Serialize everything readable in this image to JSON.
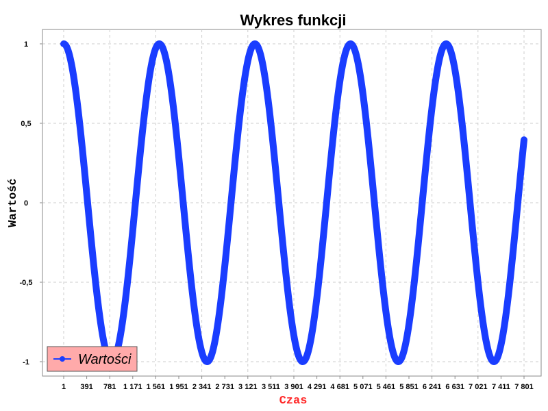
{
  "chart_data": {
    "type": "line",
    "title": "Wykres funkcji",
    "xlabel": "Czas",
    "ylabel": "Wartość",
    "xlabel_color": "#ff2a2a",
    "series_color": "#1a3dff",
    "legend_bg": "#ffaaaa",
    "legend_position": "bottom-left",
    "grid": true,
    "xlim": [
      1,
      9000
    ],
    "ylim": [
      -1.1,
      1.1
    ],
    "x_ticks": [
      "1",
      "391",
      "781",
      "1 171",
      "1 561",
      "1 951",
      "2 341",
      "2 731",
      "3 121",
      "3 511",
      "3 901",
      "4 291",
      "4 681",
      "5 071",
      "5 461",
      "5 851",
      "6 241",
      "6 631",
      "7 021",
      "7 411",
      "7 801"
    ],
    "y_ticks": [
      {
        "value": 1,
        "label": "1"
      },
      {
        "value": 0.5,
        "label": "0,5"
      },
      {
        "value": 0,
        "label": "0"
      },
      {
        "value": -0.5,
        "label": "-0,5"
      },
      {
        "value": -1,
        "label": "-1"
      }
    ],
    "series": [
      {
        "name": "Wartości",
        "function": "cos",
        "x_start": 1,
        "x_end": 7801,
        "period": 1620,
        "amplitude": 1
      }
    ]
  }
}
